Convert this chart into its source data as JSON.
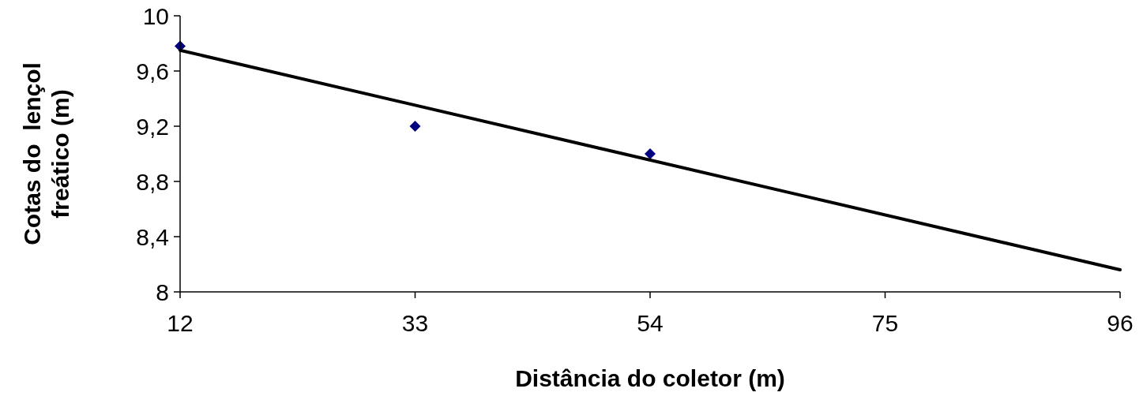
{
  "chart_data": {
    "type": "scatter",
    "xlabel": "Distância do coletor (m)",
    "ylabel": "Cotas do  lençol\nfreático (m)",
    "xlim": [
      12,
      96
    ],
    "xticks": [
      12,
      33,
      54,
      75,
      96
    ],
    "ylim": [
      8,
      10
    ],
    "yticks": [
      8,
      {
        "value": 8.4,
        "label": "8,4"
      },
      {
        "value": 8.8,
        "label": "8,8"
      },
      {
        "value": 9.2,
        "label": "9,2"
      },
      {
        "value": 9.6,
        "label": "9,6"
      },
      10
    ],
    "grid": false,
    "series": [
      {
        "color": "#000080",
        "marker": "diamond",
        "x": [
          12,
          33,
          54
        ],
        "values": [
          9.78,
          9.2,
          9.0
        ]
      },
      {
        "type": "line",
        "color": "#000000",
        "marker": "none",
        "line_style": "solid",
        "x": [
          12,
          96
        ],
        "values": [
          9.75,
          8.16
        ]
      }
    ]
  }
}
